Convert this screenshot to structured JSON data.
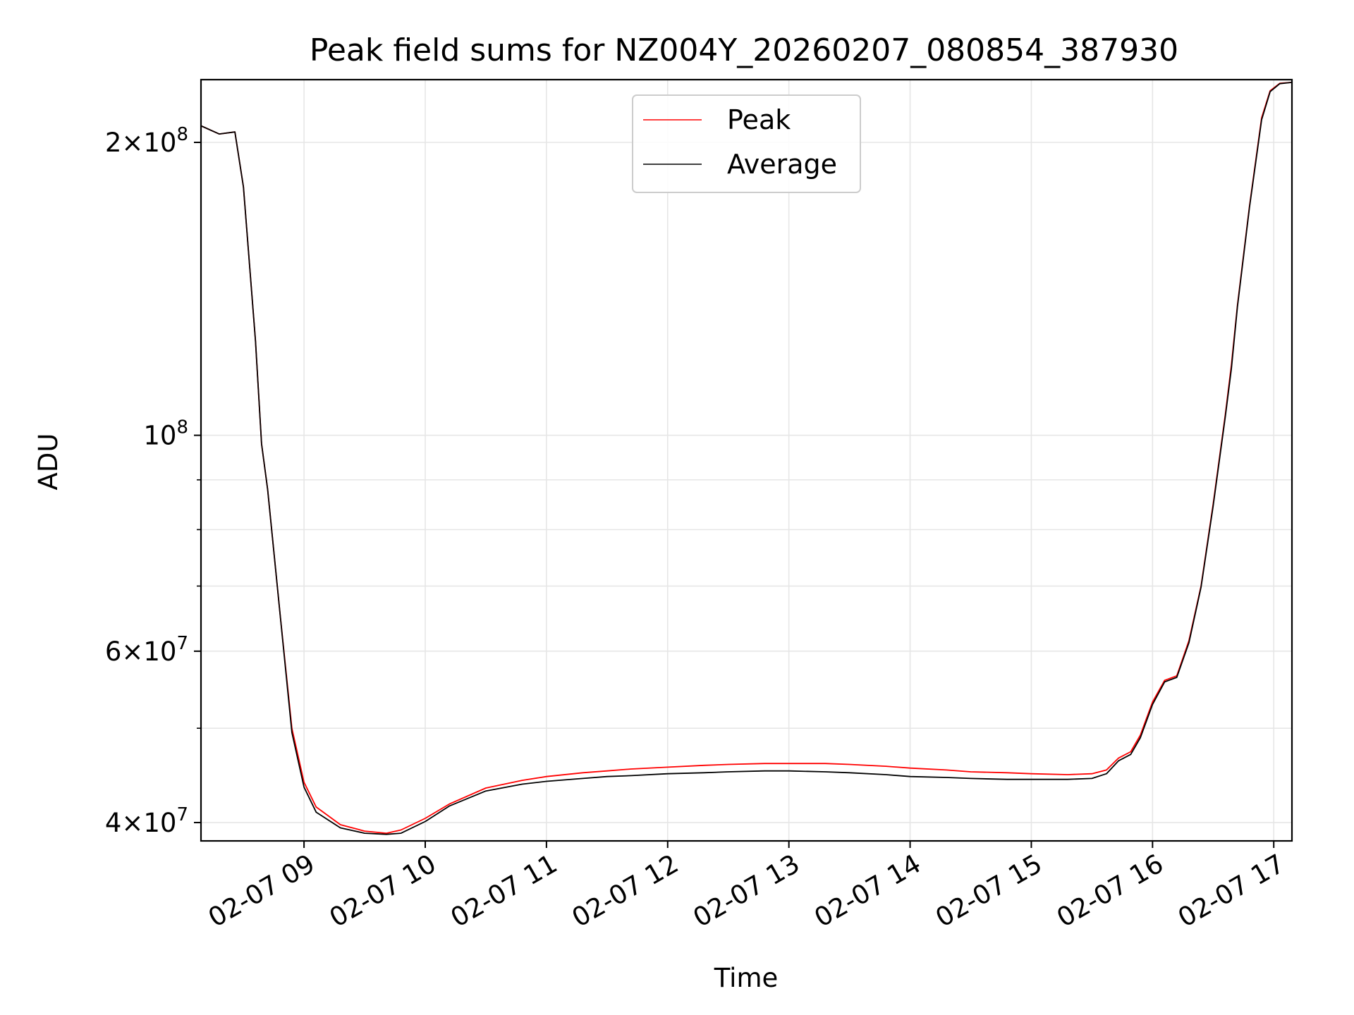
{
  "chart_data": {
    "type": "line",
    "title": "Peak field sums for NZ004Y_20260207_080854_387930",
    "xlabel": "Time",
    "ylabel": "ADU",
    "yscale": "log",
    "ylim": [
      38300000,
      232000000
    ],
    "xlim_hours": [
      8.15,
      17.15
    ],
    "grid": true,
    "legend_location": "upper center",
    "x_ticks": [
      {
        "hour": 9,
        "label": "02-07 09"
      },
      {
        "hour": 10,
        "label": "02-07 10"
      },
      {
        "hour": 11,
        "label": "02-07 11"
      },
      {
        "hour": 12,
        "label": "02-07 12"
      },
      {
        "hour": 13,
        "label": "02-07 13"
      },
      {
        "hour": 14,
        "label": "02-07 14"
      },
      {
        "hour": 15,
        "label": "02-07 15"
      },
      {
        "hour": 16,
        "label": "02-07 16"
      },
      {
        "hour": 17,
        "label": "02-07 17"
      }
    ],
    "y_major_ticks": [
      {
        "value": 40000000,
        "mantissa": "4",
        "base": "10",
        "exp": "7"
      },
      {
        "value": 60000000,
        "mantissa": "6",
        "base": "10",
        "exp": "7"
      },
      {
        "value": 100000000,
        "mantissa": "",
        "base": "10",
        "exp": "8"
      },
      {
        "value": 200000000,
        "mantissa": "2",
        "base": "10",
        "exp": "8"
      }
    ],
    "y_minor_ticks": [
      50000000,
      70000000,
      80000000,
      90000000
    ],
    "x_hours": [
      8.15,
      8.3,
      8.43,
      8.5,
      8.6,
      8.65,
      8.7,
      8.8,
      8.9,
      9.0,
      9.1,
      9.3,
      9.5,
      9.68,
      9.8,
      10.0,
      10.2,
      10.5,
      10.8,
      11.0,
      11.3,
      11.5,
      11.7,
      12.0,
      12.3,
      12.5,
      12.8,
      13.0,
      13.3,
      13.5,
      13.8,
      14.0,
      14.3,
      14.5,
      14.8,
      15.0,
      15.3,
      15.5,
      15.62,
      15.72,
      15.82,
      15.9,
      16.0,
      16.1,
      16.2,
      16.3,
      16.4,
      16.5,
      16.6,
      16.65,
      16.7,
      16.8,
      16.9,
      16.97,
      17.05,
      17.15
    ],
    "series": [
      {
        "name": "Peak",
        "color": "#ff0000",
        "values": [
          208000000,
          204000000,
          205000000,
          180000000,
          125000000,
          98000000,
          88000000,
          66000000,
          50000000,
          44000000,
          41500000,
          39800000,
          39200000,
          39000000,
          39300000,
          40400000,
          41800000,
          43400000,
          44200000,
          44600000,
          45000000,
          45200000,
          45400000,
          45600000,
          45800000,
          45900000,
          46000000,
          46000000,
          46000000,
          45900000,
          45700000,
          45500000,
          45300000,
          45100000,
          45000000,
          44900000,
          44800000,
          44900000,
          45300000,
          46600000,
          47300000,
          49200000,
          53200000,
          56000000,
          56600000,
          61500000,
          70000000,
          85000000,
          105000000,
          118000000,
          136000000,
          172000000,
          212000000,
          226000000,
          230000000,
          230500000
        ]
      },
      {
        "name": "Average",
        "color": "#000000",
        "values": [
          208000000,
          204000000,
          205000000,
          180000000,
          125000000,
          98000000,
          88000000,
          66000000,
          49500000,
          43500000,
          41000000,
          39500000,
          39000000,
          38900000,
          39000000,
          40100000,
          41600000,
          43100000,
          43800000,
          44100000,
          44400000,
          44600000,
          44700000,
          44900000,
          45000000,
          45100000,
          45200000,
          45200000,
          45100000,
          45000000,
          44800000,
          44600000,
          44500000,
          44400000,
          44300000,
          44300000,
          44300000,
          44400000,
          44900000,
          46300000,
          47000000,
          48900000,
          52900000,
          55800000,
          56400000,
          61200000,
          69800000,
          84600000,
          104500000,
          117000000,
          135500000,
          171500000,
          211000000,
          225500000,
          229800000,
          230500000
        ]
      }
    ]
  }
}
